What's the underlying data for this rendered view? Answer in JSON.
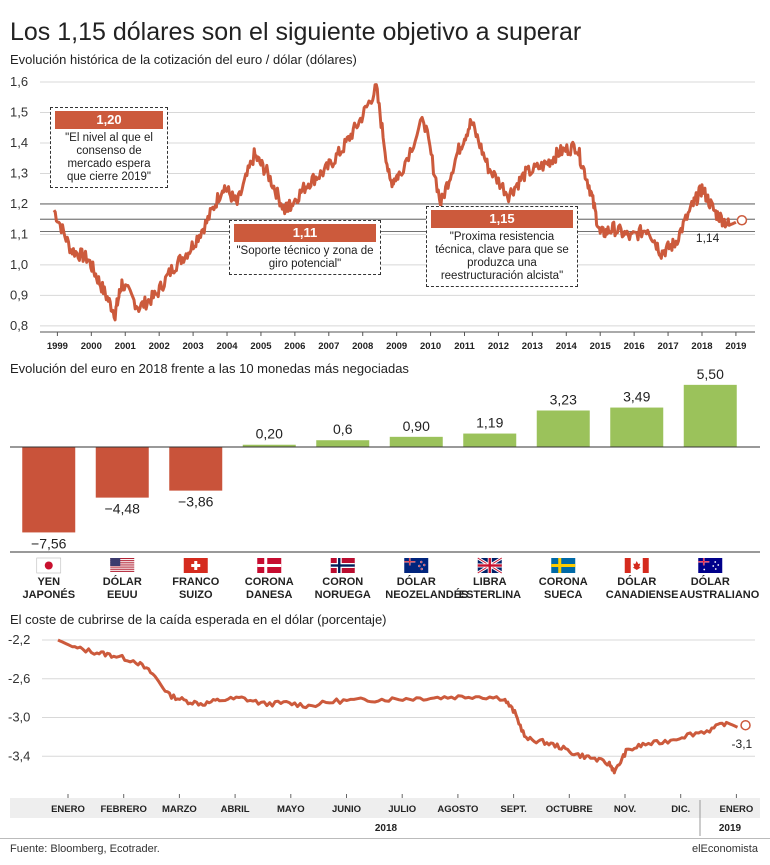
{
  "title": "Los 1,15 dólares son el siguiente objetivo a superar",
  "source": "Fuente: Bloomberg, Ecotrader.",
  "brand": "elEconomista",
  "colors": {
    "line": "#cc5a3c",
    "negative": "#c9533a",
    "positive": "#9bc25b",
    "annotation": "#cc5a3c"
  },
  "chart_data": [
    {
      "type": "line",
      "title": "Evolución histórica de la cotización del euro / dólar (dólares)",
      "x_ticks": [
        "1999",
        "2000",
        "2001",
        "2002",
        "2003",
        "2004",
        "2005",
        "2006",
        "2007",
        "2008",
        "2009",
        "2010",
        "2011",
        "2012",
        "2013",
        "2014",
        "2015",
        "2016",
        "2017",
        "2018",
        "2019"
      ],
      "y_ticks": [
        "1,6",
        "1,5",
        "1,4",
        "1,3",
        "1,2",
        "1,1",
        "1,0",
        "0,9",
        "0,8"
      ],
      "ylim": [
        0.78,
        1.6
      ],
      "reference_lines": [
        1.2,
        1.15,
        1.11
      ],
      "series": [
        {
          "x": [
            1999.0,
            1999.5,
            2000.0,
            2000.4,
            2000.8,
            2001.0,
            2001.5,
            2002.0,
            2002.5,
            2003.0,
            2003.5,
            2004.0,
            2004.4,
            2004.9,
            2005.3,
            2005.8,
            2006.0,
            2006.5,
            2007.0,
            2007.5,
            2008.0,
            2008.5,
            2008.9,
            2009.2,
            2009.9,
            2010.4,
            2010.9,
            2011.3,
            2011.8,
            2012.4,
            2012.9,
            2013.5,
            2013.9,
            2014.4,
            2014.8,
            2015.1,
            2015.5,
            2016.0,
            2016.5,
            2016.9,
            2017.3,
            2017.8,
            2018.1,
            2018.5,
            2018.9,
            2019.1
          ],
          "values": [
            1.18,
            1.05,
            1.02,
            0.93,
            0.84,
            0.94,
            0.86,
            0.9,
            0.99,
            1.05,
            1.14,
            1.26,
            1.2,
            1.36,
            1.3,
            1.18,
            1.2,
            1.27,
            1.31,
            1.38,
            1.47,
            1.58,
            1.27,
            1.3,
            1.48,
            1.2,
            1.37,
            1.47,
            1.32,
            1.23,
            1.3,
            1.33,
            1.37,
            1.39,
            1.25,
            1.1,
            1.12,
            1.09,
            1.12,
            1.04,
            1.07,
            1.19,
            1.25,
            1.17,
            1.13,
            1.14
          ]
        }
      ],
      "end_label": "1,14",
      "annotations": [
        {
          "value": "1,20",
          "text": "\"El nivel al que el consenso de mercado espera que cierre 2019\""
        },
        {
          "value": "1,11",
          "text": "\"Soporte técnico y zona de giro potencial\""
        },
        {
          "value": "1,15",
          "text": "\"Proxima resistencia técnica, clave para que se produzca una reestructuración alcista\""
        }
      ]
    },
    {
      "type": "bar",
      "title": "Evolución del euro en 2018 frente a las 10 monedas más negociadas",
      "categories": [
        "YEN JAPONÉS",
        "DÓLAR EEUU",
        "FRANCO SUIZO",
        "CORONA DANESA",
        "CORON NORUEGA",
        "DÓLAR NEOZELANDÉS",
        "LIBRA ESTERLINA",
        "CORONA SUECA",
        "DÓLAR CANADIENSE",
        "DÓLAR AUSTRALIANO"
      ],
      "category_lines": [
        [
          "YEN",
          "JAPONÉS"
        ],
        [
          "DÓLAR",
          "EEUU"
        ],
        [
          "FRANCO",
          "SUIZO"
        ],
        [
          "CORONA",
          "DANESA"
        ],
        [
          "CORON",
          "NORUEGA"
        ],
        [
          "DÓLAR",
          "NEOZELANDÉS"
        ],
        [
          "LIBRA",
          "ESTERLINA"
        ],
        [
          "CORONA",
          "SUECA"
        ],
        [
          "DÓLAR",
          "CANADIENSE"
        ],
        [
          "DÓLAR",
          "AUSTRALIANO"
        ]
      ],
      "flags": [
        "japan-flag",
        "usa-flag",
        "switzerland-flag",
        "denmark-flag",
        "norway-flag",
        "new-zealand-flag",
        "uk-flag",
        "sweden-flag",
        "canada-flag",
        "australia-flag"
      ],
      "values": [
        -7.56,
        -4.48,
        -3.86,
        0.2,
        0.6,
        0.9,
        1.19,
        3.23,
        3.49,
        5.5
      ],
      "labels": [
        "−7,56",
        "−4,48",
        "−3,86",
        "0,20",
        "0,6",
        "0,90",
        "1,19",
        "3,23",
        "3,49",
        "5,50"
      ]
    },
    {
      "type": "line",
      "title": "El coste de cubrirse de la caída esperada en el dólar (porcentaje)",
      "x_ticks": [
        "ENERO",
        "FEBRERO",
        "MARZO",
        "ABRIL",
        "MAYO",
        "JUNIO",
        "JULIO",
        "AGOSTO",
        "SEPT.",
        "OCTUBRE",
        "NOV.",
        "DIC.",
        "ENERO"
      ],
      "year_labels": [
        "2018",
        "2019"
      ],
      "y_ticks": [
        "-2,2",
        "-2,6",
        "-3,0",
        "-3,4"
      ],
      "ylim": [
        -3.7,
        -2.2
      ],
      "series": [
        {
          "x": [
            0.0,
            0.3,
            0.7,
            1.0,
            1.4,
            1.7,
            2.0,
            2.3,
            2.6,
            2.9,
            3.3,
            3.7,
            4.1,
            4.5,
            5.0,
            5.5,
            6.0,
            6.5,
            7.0,
            7.5,
            8.0,
            8.2,
            8.4,
            8.7,
            9.0,
            9.3,
            9.6,
            9.9,
            10.0,
            10.2,
            10.5,
            10.9,
            11.3,
            11.7,
            12.0,
            12.2
          ],
          "values": [
            -2.2,
            -2.28,
            -2.33,
            -2.36,
            -2.42,
            -2.55,
            -2.77,
            -2.83,
            -2.86,
            -2.82,
            -2.8,
            -2.86,
            -2.85,
            -2.88,
            -2.83,
            -2.82,
            -2.81,
            -2.8,
            -2.79,
            -2.78,
            -2.8,
            -2.95,
            -3.22,
            -3.25,
            -3.3,
            -3.38,
            -3.42,
            -3.48,
            -3.56,
            -3.35,
            -3.28,
            -3.25,
            -3.18,
            -3.13,
            -3.05,
            -3.1
          ]
        }
      ],
      "end_label": "-3,1"
    }
  ]
}
